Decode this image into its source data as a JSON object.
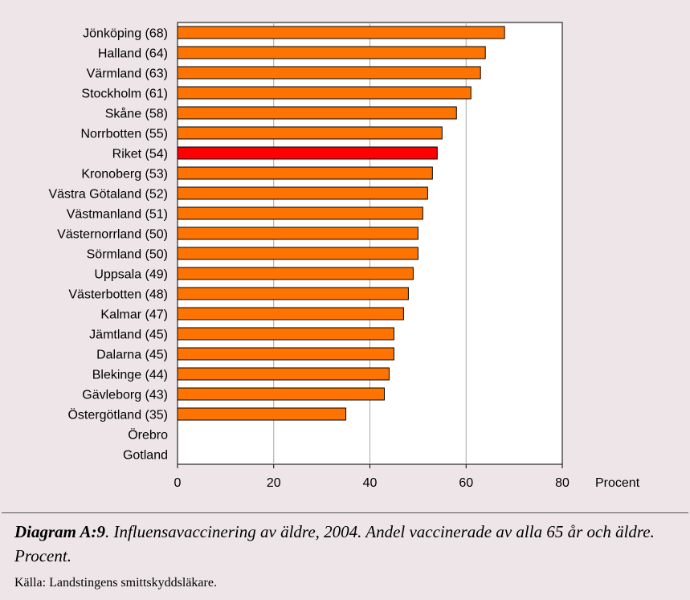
{
  "chart_data": {
    "type": "bar",
    "orientation": "horizontal",
    "categories": [
      "Jönköping (68)",
      "Halland (64)",
      "Värmland (63)",
      "Stockholm (61)",
      "Skåne (58)",
      "Norrbotten (55)",
      "Riket (54)",
      "Kronoberg (53)",
      "Västra Götaland (52)",
      "Västmanland (51)",
      "Västernorrland (50)",
      "Sörmland (50)",
      "Uppsala (49)",
      "Västerbotten (48)",
      "Kalmar (47)",
      "Jämtland (45)",
      "Dalarna (45)",
      "Blekinge (44)",
      "Gävleborg (43)",
      "Östergötland (35)",
      "Örebro",
      "Gotland"
    ],
    "values": [
      68,
      64,
      63,
      61,
      58,
      55,
      54,
      53,
      52,
      51,
      50,
      50,
      49,
      48,
      47,
      45,
      45,
      44,
      43,
      35,
      null,
      null
    ],
    "highlight_category": "Riket (54)",
    "xlim": [
      0,
      80
    ],
    "xticks": [
      "0",
      "20",
      "40",
      "60",
      "80"
    ],
    "xlabel": "Procent",
    "grid": "vertical",
    "colors": {
      "bar": "#ff7400",
      "highlight": "#ff0000",
      "bar_edge": "#000000",
      "plot_bg": "#ffffff",
      "grid": "#a8a8a8",
      "page_bg": "#ede5e8"
    }
  },
  "caption": {
    "head": "Diagram A:9",
    "text": ". Influensavaccinering av äldre, 2004. Andel vaccinerade av alla 65 år och äldre. Procent."
  },
  "source": "Källa: Landstingens smittskyddsläkare."
}
